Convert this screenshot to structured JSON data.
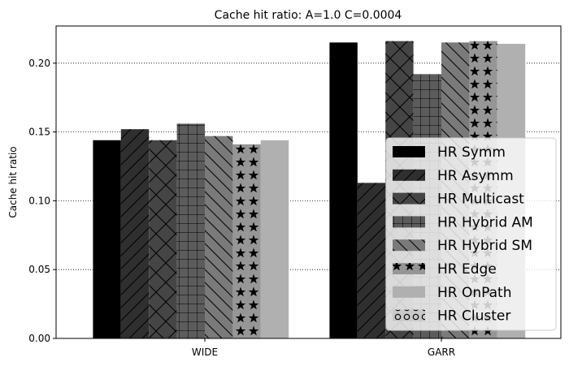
{
  "chart_data": {
    "type": "bar",
    "title": "Cache hit ratio: A=1.0 C=0.0004",
    "xlabel": "",
    "ylabel": "Cache hit ratio",
    "categories": [
      "WIDE",
      "GARR"
    ],
    "ylim": [
      0,
      0.227
    ],
    "yticks": [
      0.0,
      0.05,
      0.1,
      0.15,
      0.2
    ],
    "ytick_labels": [
      "0.00",
      "0.05",
      "0.10",
      "0.15",
      "0.20"
    ],
    "grid": "y-dotted",
    "legend_position": "lower-right",
    "series": [
      {
        "name": "HR Symm",
        "values": [
          0.144,
          0.215
        ],
        "color": "#000000",
        "hatch": "none"
      },
      {
        "name": "HR Asymm",
        "values": [
          0.152,
          0.113
        ],
        "color": "#2f2f2f",
        "hatch": "diagonal"
      },
      {
        "name": "HR Multicast",
        "values": [
          0.144,
          0.216
        ],
        "color": "#454545",
        "hatch": "cross-diagonal"
      },
      {
        "name": "HR Hybrid AM",
        "values": [
          0.156,
          0.192
        ],
        "color": "#5c5c5c",
        "hatch": "grid"
      },
      {
        "name": "HR Hybrid SM",
        "values": [
          0.147,
          0.215
        ],
        "color": "#7a7a7a",
        "hatch": "backslash"
      },
      {
        "name": "HR Edge",
        "values": [
          0.141,
          0.216
        ],
        "color": "#969696",
        "hatch": "stars"
      },
      {
        "name": "HR OnPath",
        "values": [
          0.144,
          0.214
        ],
        "color": "#b0b0b0",
        "hatch": "none"
      },
      {
        "name": "HR Cluster",
        "values": [
          0.0,
          0.0
        ],
        "color": "#c8c8c8",
        "hatch": "circles"
      }
    ]
  }
}
